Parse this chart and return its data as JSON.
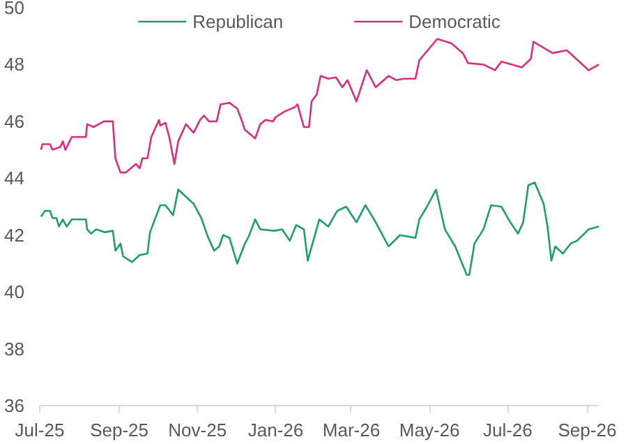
{
  "chart_data": {
    "type": "line",
    "legend": "top",
    "grid": false,
    "line_style": "solid",
    "marker": "none",
    "xlim": [
      "2025-07-01",
      "2026-09-10"
    ],
    "xticks": [
      {
        "value": "2025-07-01",
        "label": "Jul-25"
      },
      {
        "value": "2025-09-01",
        "label": "Sep-25"
      },
      {
        "value": "2025-11-01",
        "label": "Nov-25"
      },
      {
        "value": "2026-01-01",
        "label": "Jan-26"
      },
      {
        "value": "2026-03-01",
        "label": "Mar-26"
      },
      {
        "value": "2026-05-01",
        "label": "May-26"
      },
      {
        "value": "2026-07-01",
        "label": "Jul-26"
      },
      {
        "value": "2026-09-01",
        "label": "Sep-26"
      }
    ],
    "ylim": [
      36,
      50
    ],
    "yticks": [
      36,
      38,
      40,
      42,
      44,
      46,
      48,
      50
    ],
    "series": [
      {
        "name": "Republican",
        "color": "#1f9e6b",
        "x": [
          "2025-07-02",
          "2025-07-05",
          "2025-07-09",
          "2025-07-11",
          "2025-07-14",
          "2025-07-16",
          "2025-07-19",
          "2025-07-22",
          "2025-07-26",
          "2025-08-06",
          "2025-08-07",
          "2025-08-10",
          "2025-08-14",
          "2025-08-21",
          "2025-08-27",
          "2025-08-29",
          "2025-09-02",
          "2025-09-04",
          "2025-09-11",
          "2025-09-17",
          "2025-09-23",
          "2025-09-25",
          "2025-10-03",
          "2025-10-07",
          "2025-10-13",
          "2025-10-17",
          "2025-10-29",
          "2025-11-04",
          "2025-11-09",
          "2025-11-14",
          "2025-11-18",
          "2025-11-21",
          "2025-11-26",
          "2025-12-02",
          "2025-12-08",
          "2025-12-11",
          "2025-12-16",
          "2025-12-20",
          "2025-12-31",
          "2026-01-06",
          "2026-01-12",
          "2026-01-17",
          "2026-01-23",
          "2026-01-26",
          "2026-02-04",
          "2026-02-11",
          "2026-02-18",
          "2026-02-25",
          "2026-03-05",
          "2026-03-12",
          "2026-03-20",
          "2026-03-30",
          "2026-04-08",
          "2026-04-20",
          "2026-04-23",
          "2026-04-29",
          "2026-05-06",
          "2026-05-13",
          "2026-05-21",
          "2026-05-30",
          "2026-06-01",
          "2026-06-05",
          "2026-06-12",
          "2026-06-18",
          "2026-06-26",
          "2026-07-03",
          "2026-07-09",
          "2026-07-13",
          "2026-07-17",
          "2026-07-22",
          "2026-07-29",
          "2026-08-01",
          "2026-08-04",
          "2026-08-07",
          "2026-08-13",
          "2026-08-19",
          "2026-08-24",
          "2026-09-02",
          "2026-09-10"
        ],
        "values": [
          42.65,
          42.85,
          42.85,
          42.6,
          42.6,
          42.3,
          42.55,
          42.3,
          42.55,
          42.55,
          42.2,
          42.05,
          42.2,
          42.1,
          42.15,
          41.45,
          41.7,
          41.25,
          41.05,
          41.3,
          41.35,
          42.1,
          43.05,
          43.05,
          42.7,
          43.6,
          43.1,
          42.6,
          41.95,
          41.45,
          41.6,
          42.0,
          41.9,
          41.0,
          41.7,
          41.95,
          42.55,
          42.2,
          42.15,
          42.2,
          41.8,
          42.35,
          42.2,
          41.1,
          42.55,
          42.3,
          42.85,
          43.0,
          42.45,
          43.05,
          42.45,
          41.6,
          42.0,
          41.9,
          42.55,
          43.0,
          43.6,
          42.2,
          41.6,
          40.6,
          40.6,
          41.7,
          42.2,
          43.05,
          43.0,
          42.45,
          42.05,
          42.45,
          43.75,
          43.85,
          43.1,
          42.3,
          41.1,
          41.6,
          41.35,
          41.7,
          41.8,
          42.2,
          42.3
        ]
      },
      {
        "name": "Democratic",
        "color": "#d6307f",
        "x": [
          "2025-07-02",
          "2025-07-03",
          "2025-07-09",
          "2025-07-11",
          "2025-07-17",
          "2025-07-19",
          "2025-07-21",
          "2025-07-26",
          "2025-08-06",
          "2025-08-07",
          "2025-08-12",
          "2025-08-20",
          "2025-08-27",
          "2025-08-29",
          "2025-09-02",
          "2025-09-06",
          "2025-09-14",
          "2025-09-17",
          "2025-09-19",
          "2025-09-23",
          "2025-09-26",
          "2025-10-02",
          "2025-10-03",
          "2025-10-07",
          "2025-10-10",
          "2025-10-14",
          "2025-10-17",
          "2025-10-23",
          "2025-10-29",
          "2025-11-03",
          "2025-11-06",
          "2025-11-10",
          "2025-11-16",
          "2025-11-19",
          "2025-11-26",
          "2025-12-02",
          "2025-12-05",
          "2025-12-08",
          "2025-12-16",
          "2025-12-20",
          "2025-12-24",
          "2025-12-30",
          "2026-01-01",
          "2026-01-08",
          "2026-01-16",
          "2026-01-18",
          "2026-01-23",
          "2026-01-27",
          "2026-01-29",
          "2026-02-02",
          "2026-02-05",
          "2026-02-11",
          "2026-02-17",
          "2026-02-22",
          "2026-02-26",
          "2026-03-05",
          "2026-03-13",
          "2026-03-20",
          "2026-03-30",
          "2026-04-05",
          "2026-04-11",
          "2026-04-20",
          "2026-04-23",
          "2026-05-07",
          "2026-05-18",
          "2026-05-27",
          "2026-05-31",
          "2026-06-12",
          "2026-06-21",
          "2026-06-26",
          "2026-07-12",
          "2026-07-19",
          "2026-07-21",
          "2026-08-05",
          "2026-08-16",
          "2026-09-02",
          "2026-09-10"
        ],
        "values": [
          45.0,
          45.2,
          45.2,
          45.0,
          45.1,
          45.3,
          45.0,
          45.45,
          45.45,
          45.9,
          45.8,
          46.0,
          46.0,
          44.7,
          44.2,
          44.2,
          44.5,
          44.35,
          44.7,
          44.7,
          45.45,
          46.05,
          45.85,
          45.95,
          45.45,
          44.5,
          45.3,
          45.9,
          45.6,
          46.05,
          46.2,
          46.0,
          46.0,
          46.6,
          46.65,
          46.45,
          46.1,
          45.7,
          45.4,
          45.9,
          46.05,
          46.0,
          46.15,
          46.35,
          46.5,
          46.6,
          45.8,
          45.8,
          46.7,
          46.95,
          47.6,
          47.5,
          47.55,
          47.2,
          47.45,
          46.7,
          47.8,
          47.2,
          47.6,
          47.45,
          47.5,
          47.5,
          48.15,
          48.9,
          48.75,
          48.4,
          48.05,
          48.0,
          47.8,
          48.1,
          47.9,
          48.2,
          48.8,
          48.4,
          48.5,
          47.8,
          48.0
        ]
      }
    ]
  }
}
